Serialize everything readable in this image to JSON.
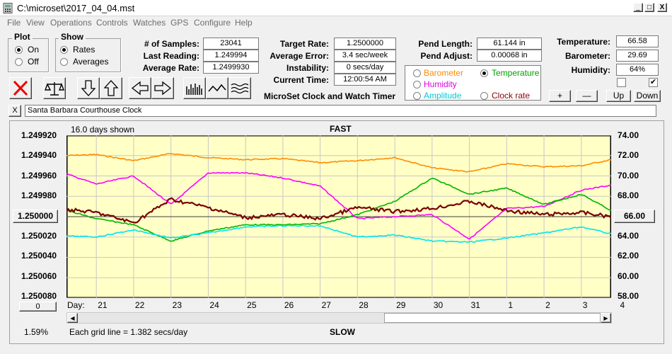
{
  "window": {
    "title": "C:\\microset\\2017_04_04.mst",
    "minimize": "_",
    "restore": "□",
    "close": "X"
  },
  "menu": [
    "File",
    "View",
    "Operations",
    "Controls",
    "Watches",
    "GPS",
    "Configure",
    "Help"
  ],
  "plot": {
    "title": "Plot",
    "on": "On",
    "off": "Off",
    "selected": "On"
  },
  "show": {
    "title": "Show",
    "rates": "Rates",
    "averages": "Averages",
    "selected": "Rates"
  },
  "stats": {
    "samples_label": "# of Samples:",
    "samples": "23041",
    "last_label": "Last Reading:",
    "last": "1.249994",
    "avg_label": "Average Rate:",
    "avg": "1.2499930"
  },
  "rates": {
    "target_label": "Target Rate:",
    "target": "1.2500000",
    "error_label": "Average Error:",
    "error": "3.4 sec/week",
    "instab_label": "Instability:",
    "instab": "0 secs/day",
    "time_label": "Current Time:",
    "time": "12:00:54 AM"
  },
  "app_name": "MicroSet Clock and Watch Timer",
  "pend": {
    "length_label": "Pend Length:",
    "length": "61.144 in",
    "adjust_label": "Pend Adjust:",
    "adjust": "0.00068 in"
  },
  "selector": {
    "barometer": "Barometer",
    "temperature": "Temperature",
    "humidity": "Humidity",
    "amplitude": "Amplitude",
    "clock_rate": "Clock rate",
    "selected": "Temperature"
  },
  "env": {
    "temp_label": "Temperature:",
    "temp": "66.58",
    "baro_label": "Barometer:",
    "baro": "29.69",
    "hum_label": "Humidity:",
    "hum": "64%",
    "check_left": false,
    "check_right": true
  },
  "adjust_buttons": {
    "plus": "+",
    "minus": "—",
    "up": "Up",
    "down": "Down"
  },
  "description": {
    "close": "X",
    "value": "Santa Barbara Courthouse Clock"
  },
  "chart_data": {
    "type": "line",
    "top_label": "FAST",
    "bottom_label": "SLOW",
    "days_shown": "16.0 days shown",
    "grid_note": "Each grid line = 1.382 secs/day",
    "percent": "1.59%",
    "left_button": "1.250000",
    "right_button": "66.00",
    "zero_button": "0",
    "day_prefix": "Day:",
    "days": [
      "21",
      "22",
      "23",
      "24",
      "25",
      "26",
      "27",
      "28",
      "29",
      "30",
      "31",
      "1",
      "2",
      "3",
      "4"
    ],
    "left_axis": {
      "ticks": [
        "1.249920",
        "1.249940",
        "1.249960",
        "1.249980",
        "1.250000",
        "1.250020",
        "1.250040",
        "1.250060",
        "1.250080"
      ],
      "ylim": [
        1.24992,
        1.25008
      ],
      "inverted": true
    },
    "right_axis": {
      "ticks": [
        "74.00",
        "72.00",
        "70.00",
        "68.00",
        "66.00",
        "64.00",
        "62.00",
        "60.00",
        "58.00"
      ],
      "ylim": [
        58,
        74
      ]
    },
    "x": [
      20.2,
      21,
      22,
      23,
      24,
      25,
      26,
      27,
      28,
      29,
      30,
      31,
      32,
      33,
      34,
      34.8
    ],
    "series": [
      {
        "color": "#ff8c00",
        "axis": "right",
        "values": [
          72.0,
          72.1,
          71.5,
          72.2,
          71.8,
          71.6,
          71.7,
          71.3,
          71.5,
          71.8,
          70.8,
          70.4,
          71.2,
          70.9,
          71.0,
          71.6
        ]
      },
      {
        "color": "#ff00ff",
        "axis": "right",
        "values": [
          70.2,
          69.2,
          70.0,
          67.2,
          70.3,
          70.3,
          69.8,
          69.0,
          65.8,
          66.0,
          66.2,
          63.8,
          66.8,
          67.0,
          68.6,
          69.1
        ]
      },
      {
        "color": "#00b400",
        "axis": "right",
        "values": [
          66.6,
          65.8,
          65.2,
          63.6,
          64.6,
          65.2,
          65.2,
          65.3,
          66.2,
          67.5,
          69.8,
          68.2,
          68.8,
          67.2,
          68.2,
          66.6
        ]
      },
      {
        "color": "#00e5ee",
        "axis": "right",
        "values": [
          64.1,
          64.0,
          64.7,
          63.9,
          64.4,
          65.0,
          65.1,
          65.1,
          64.0,
          64.2,
          63.6,
          63.5,
          63.9,
          64.4,
          65.0,
          64.3
        ]
      },
      {
        "color": "#7a0000",
        "axis": "left",
        "values": [
          1.249993,
          1.249996,
          1.250006,
          1.249983,
          1.249991,
          1.250001,
          1.249998,
          1.250002,
          1.249991,
          1.249995,
          1.249992,
          1.249985,
          1.249994,
          1.249998,
          1.249996,
          1.25
        ]
      }
    ]
  }
}
